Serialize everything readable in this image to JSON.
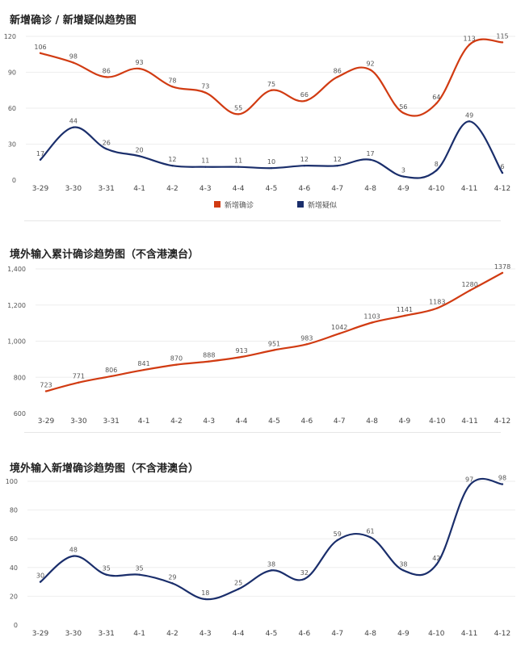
{
  "chart_data": [
    {
      "type": "line",
      "title": "新增确诊 / 新增疑似趋势图",
      "categories": [
        "3-29",
        "3-30",
        "3-31",
        "4-1",
        "4-2",
        "4-3",
        "4-4",
        "4-5",
        "4-6",
        "4-7",
        "4-8",
        "4-9",
        "4-10",
        "4-11",
        "4-12"
      ],
      "series": [
        {
          "name": "新增确诊",
          "color": "#d13b12",
          "values": [
            106,
            98,
            86,
            93,
            78,
            73,
            55,
            75,
            66,
            86,
            92,
            56,
            64,
            113,
            115
          ]
        },
        {
          "name": "新增疑似",
          "color": "#1a2e6b",
          "values": [
            17,
            44,
            26,
            20,
            12,
            11,
            11,
            10,
            12,
            12,
            17,
            3,
            8,
            49,
            6
          ]
        }
      ],
      "ylim": [
        0,
        120
      ],
      "yticks": [
        "0",
        "30",
        "60",
        "90",
        "120"
      ],
      "legend": "bottom-center",
      "grid": true
    },
    {
      "type": "line",
      "title": "境外输入累计确诊趋势图（不含港澳台）",
      "categories": [
        "3-29",
        "3-30",
        "3-31",
        "4-1",
        "4-2",
        "4-3",
        "4-4",
        "4-5",
        "4-6",
        "4-7",
        "4-8",
        "4-9",
        "4-10",
        "4-11",
        "4-12"
      ],
      "series": [
        {
          "color": "#d13b12",
          "values": [
            723,
            771,
            806,
            841,
            870,
            888,
            913,
            951,
            983,
            1042,
            1103,
            1141,
            1183,
            1280,
            1378
          ]
        }
      ],
      "ylim": [
        600,
        1400
      ],
      "yticks": [
        "600",
        "800",
        "1,000",
        "1,200",
        "1,400"
      ],
      "grid": true
    },
    {
      "type": "line",
      "title": "境外输入新增确诊趋势图（不含港澳台）",
      "categories": [
        "3-29",
        "3-30",
        "3-31",
        "4-1",
        "4-2",
        "4-3",
        "4-4",
        "4-5",
        "4-6",
        "4-7",
        "4-8",
        "4-9",
        "4-10",
        "4-11",
        "4-12"
      ],
      "series": [
        {
          "color": "#1a2e6b",
          "values": [
            30,
            48,
            35,
            35,
            29,
            18,
            25,
            38,
            32,
            59,
            61,
            38,
            42,
            97,
            98
          ]
        }
      ],
      "ylim": [
        0,
        100
      ],
      "yticks": [
        "0",
        "20",
        "40",
        "60",
        "80",
        "100"
      ],
      "grid": true
    }
  ]
}
